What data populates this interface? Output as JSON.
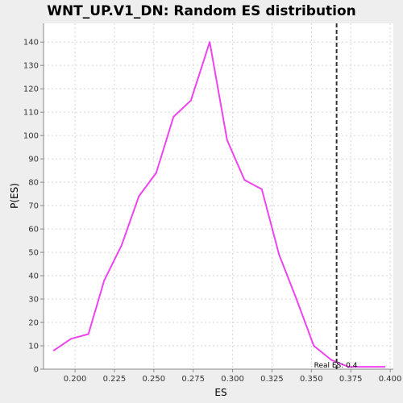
{
  "chart_data": {
    "type": "line",
    "title": "WNT_UP.V1_DN: Random ES distribution",
    "xlabel": "ES",
    "ylabel": "P(ES)",
    "xlim": [
      0.18,
      0.402
    ],
    "ylim": [
      0,
      148
    ],
    "xticks": [
      0.2,
      0.225,
      0.25,
      0.275,
      0.3,
      0.325,
      0.35,
      0.375,
      0.4
    ],
    "xtick_labels": [
      "0.200",
      "0.225",
      "0.250",
      "0.275",
      "0.300",
      "0.325",
      "0.350",
      "0.375",
      "0.400"
    ],
    "yticks": [
      0,
      10,
      20,
      30,
      40,
      50,
      60,
      70,
      80,
      90,
      100,
      110,
      120,
      130,
      140
    ],
    "ytick_labels": [
      "0",
      "10",
      "20",
      "30",
      "40",
      "50",
      "60",
      "70",
      "80",
      "90",
      "100",
      "110",
      "120",
      "130",
      "140"
    ],
    "grid": true,
    "series": [
      {
        "color": "#ee44ee",
        "x": [
          0.1865,
          0.1975,
          0.2085,
          0.2185,
          0.2295,
          0.2405,
          0.2515,
          0.2625,
          0.2735,
          0.2855,
          0.2965,
          0.3075,
          0.3185,
          0.3295,
          0.3405,
          0.3515,
          0.3625,
          0.3735,
          0.3845,
          0.3965
        ],
        "y": [
          8,
          13,
          15,
          38,
          53,
          74,
          84,
          108,
          115,
          140,
          98,
          81,
          77,
          49,
          30,
          10,
          4,
          1,
          1,
          1
        ]
      }
    ],
    "annotation": {
      "label": "Real ES: 0.4",
      "x": 0.366,
      "color": "#333333"
    }
  }
}
